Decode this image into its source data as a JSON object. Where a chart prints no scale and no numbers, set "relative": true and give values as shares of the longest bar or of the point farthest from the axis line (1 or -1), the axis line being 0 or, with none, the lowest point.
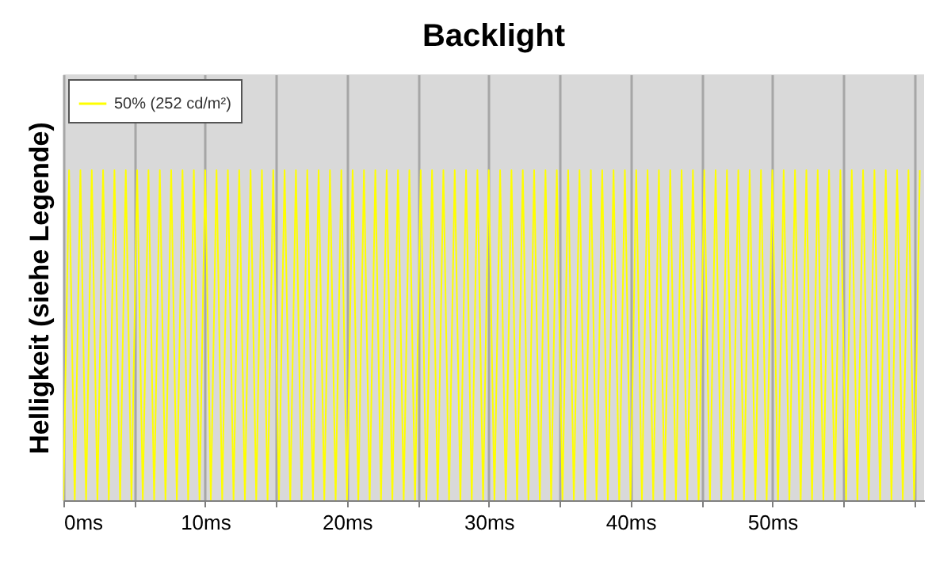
{
  "chart_data": {
    "type": "line",
    "title": "Backlight",
    "ylabel": "Helligkeit (siehe Legende)",
    "relative": true,
    "xlim": [
      0,
      60.7
    ],
    "xticks": [
      {
        "value": 0,
        "label": "0ms"
      },
      {
        "value": 5,
        "label": null
      },
      {
        "value": 10,
        "label": "10ms"
      },
      {
        "value": 15,
        "label": null
      },
      {
        "value": 20,
        "label": "20ms"
      },
      {
        "value": 25,
        "label": null
      },
      {
        "value": 30,
        "label": "30ms"
      },
      {
        "value": 35,
        "label": null
      },
      {
        "value": 40,
        "label": "40ms"
      },
      {
        "value": 45,
        "label": null
      },
      {
        "value": 50,
        "label": "50ms"
      },
      {
        "value": 55,
        "label": null
      },
      {
        "value": 60,
        "label": null
      }
    ],
    "grid": "x",
    "legend": "top left",
    "x": [
      0,
      0.4,
      0.8,
      1.2,
      1.6,
      2,
      2.4,
      2.8,
      3.2,
      3.6,
      4,
      4.4,
      4.8,
      5.2,
      5.6,
      6,
      6.4,
      6.8,
      7.2,
      7.6,
      8,
      8.4,
      8.8,
      9.2,
      9.6,
      10,
      10.4,
      10.8,
      11.2,
      11.6,
      12,
      12.4,
      12.8,
      13.2,
      13.6,
      14,
      14.4,
      14.8,
      15.2,
      15.6,
      16,
      16.4,
      16.8,
      17.2,
      17.6,
      18,
      18.4,
      18.8,
      19.2,
      19.6,
      20,
      20.4,
      20.8,
      21.2,
      21.6,
      22,
      22.4,
      22.8,
      23.2,
      23.6,
      24,
      24.4,
      24.8,
      25.2,
      25.6,
      26,
      26.4,
      26.8,
      27.2,
      27.6,
      28,
      28.4,
      28.8,
      29.2,
      29.6,
      30,
      30.4,
      30.8,
      31.2,
      31.6,
      32,
      32.4,
      32.8,
      33.2,
      33.6,
      34,
      34.4,
      34.8,
      35.2,
      35.6,
      36,
      36.4,
      36.8,
      37.2,
      37.6,
      38,
      38.4,
      38.8,
      39.2,
      39.6,
      40,
      40.4,
      40.8,
      41.2,
      41.6,
      42,
      42.4,
      42.8,
      43.2,
      43.6,
      44,
      44.4,
      44.8,
      45.2,
      45.6,
      46,
      46.4,
      46.8,
      47.2,
      47.6,
      48,
      48.4,
      48.8,
      49.2,
      49.6,
      50,
      50.4,
      50.8,
      51.2,
      51.6,
      52,
      52.4,
      52.8,
      53.2,
      53.6,
      54,
      54.4,
      54.8,
      55.2,
      55.6,
      56,
      56.4,
      56.8,
      57.2,
      57.6,
      58,
      58.4,
      58.8,
      59.2,
      59.6,
      60,
      60.4
    ],
    "series": [
      {
        "name": "50% (252 cd/m²)",
        "color": "#ffff00",
        "values": [
          0,
          1,
          0,
          1,
          0,
          1,
          0,
          1,
          0,
          1,
          0,
          1,
          0,
          1,
          0,
          1,
          0,
          1,
          0,
          1,
          0,
          1,
          0,
          1,
          0,
          1,
          0,
          1,
          0,
          1,
          0,
          1,
          0,
          1,
          0,
          1,
          0,
          1,
          0,
          1,
          0,
          1,
          0,
          1,
          0,
          1,
          0,
          1,
          0,
          1,
          0,
          1,
          0,
          1,
          0,
          1,
          0,
          1,
          0,
          1,
          0,
          1,
          0,
          1,
          0,
          1,
          0,
          1,
          0,
          1,
          0,
          1,
          0,
          1,
          0,
          1,
          0,
          1,
          0,
          1,
          0,
          1,
          0,
          1,
          0,
          1,
          0,
          1,
          0,
          1,
          0,
          1,
          0,
          1,
          0,
          1,
          0,
          1,
          0,
          1,
          0,
          1,
          0,
          1,
          0,
          1,
          0,
          1,
          0,
          1,
          0,
          1,
          0,
          1,
          0,
          1,
          0,
          1,
          0,
          1,
          0,
          1,
          0,
          1,
          0,
          1,
          0,
          1,
          0,
          1,
          0,
          1,
          0,
          1,
          0,
          1,
          0,
          1,
          0,
          1,
          0,
          1,
          0,
          1,
          0,
          1,
          0,
          1,
          0,
          1,
          0,
          1
        ]
      }
    ]
  }
}
